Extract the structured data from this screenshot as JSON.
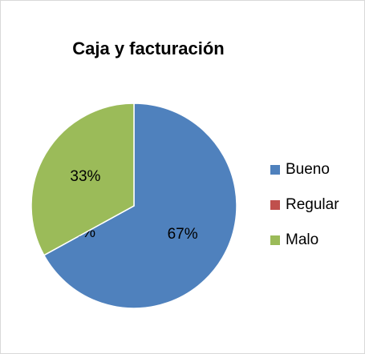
{
  "chart_data": {
    "type": "pie",
    "title": "Caja y facturación",
    "categories": [
      "Bueno",
      "Regular",
      "Malo"
    ],
    "values": [
      67,
      0,
      33
    ],
    "value_labels": [
      "67%",
      "0%",
      "33%"
    ],
    "colors": [
      "#4f81bd",
      "#c0504d",
      "#9bbb59"
    ],
    "legend": "right"
  }
}
